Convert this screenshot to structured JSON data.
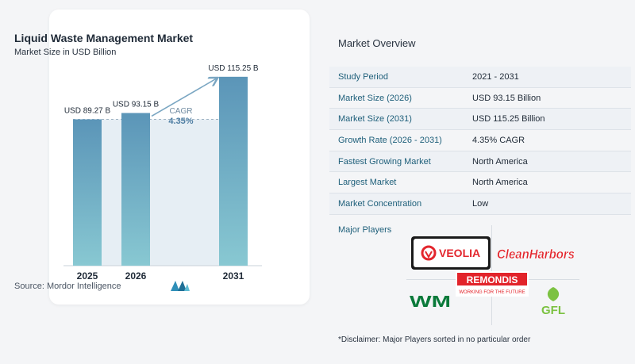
{
  "chart_card": {
    "title": "Liquid Waste Management Market",
    "subtitle": "Market Size in USD Billion",
    "source": "Source:  Mordor Intelligence"
  },
  "chart_data": {
    "type": "bar",
    "title": "Liquid Waste Management Market",
    "subtitle": "Market Size in USD Billion",
    "categories": [
      "2025",
      "2026",
      "2031"
    ],
    "values": [
      89.27,
      93.15,
      115.25
    ],
    "data_labels": [
      "USD 89.27 B",
      "USD 93.15 B",
      "USD 115.25 B"
    ],
    "ylim": [
      0,
      120
    ],
    "cagr_label": "CAGR",
    "cagr_value": "4.35%",
    "colors": {
      "bar_top": "#5b95b8",
      "bar_bottom": "#88c8d2",
      "arrow": "#7aa6c2",
      "band": "#e6eef4"
    }
  },
  "overview": {
    "heading": "Market Overview",
    "rows": [
      {
        "label": "Study Period",
        "value": "2021 - 2031"
      },
      {
        "label": "Market Size (2026)",
        "value": "USD 93.15 Billion"
      },
      {
        "label": "Market Size (2031)",
        "value": "USD 115.25 Billion"
      },
      {
        "label": "Growth Rate (2026 - 2031)",
        "value": "4.35% CAGR"
      },
      {
        "label": "Fastest Growing Market",
        "value": "North America"
      },
      {
        "label": "Largest Market",
        "value": "North America"
      },
      {
        "label": "Market Concentration",
        "value": "Low"
      }
    ]
  },
  "players": {
    "label": "Major Players",
    "veolia": "VEOLIA",
    "cleanharbors": "CleanHarbors",
    "remondis": "REMONDIS",
    "remondis_tagline": "WORKING FOR THE FUTURE",
    "wm": "WM",
    "gfl": "GFL"
  },
  "disclaimer": "*Disclaimer: Major Players sorted in no particular order"
}
